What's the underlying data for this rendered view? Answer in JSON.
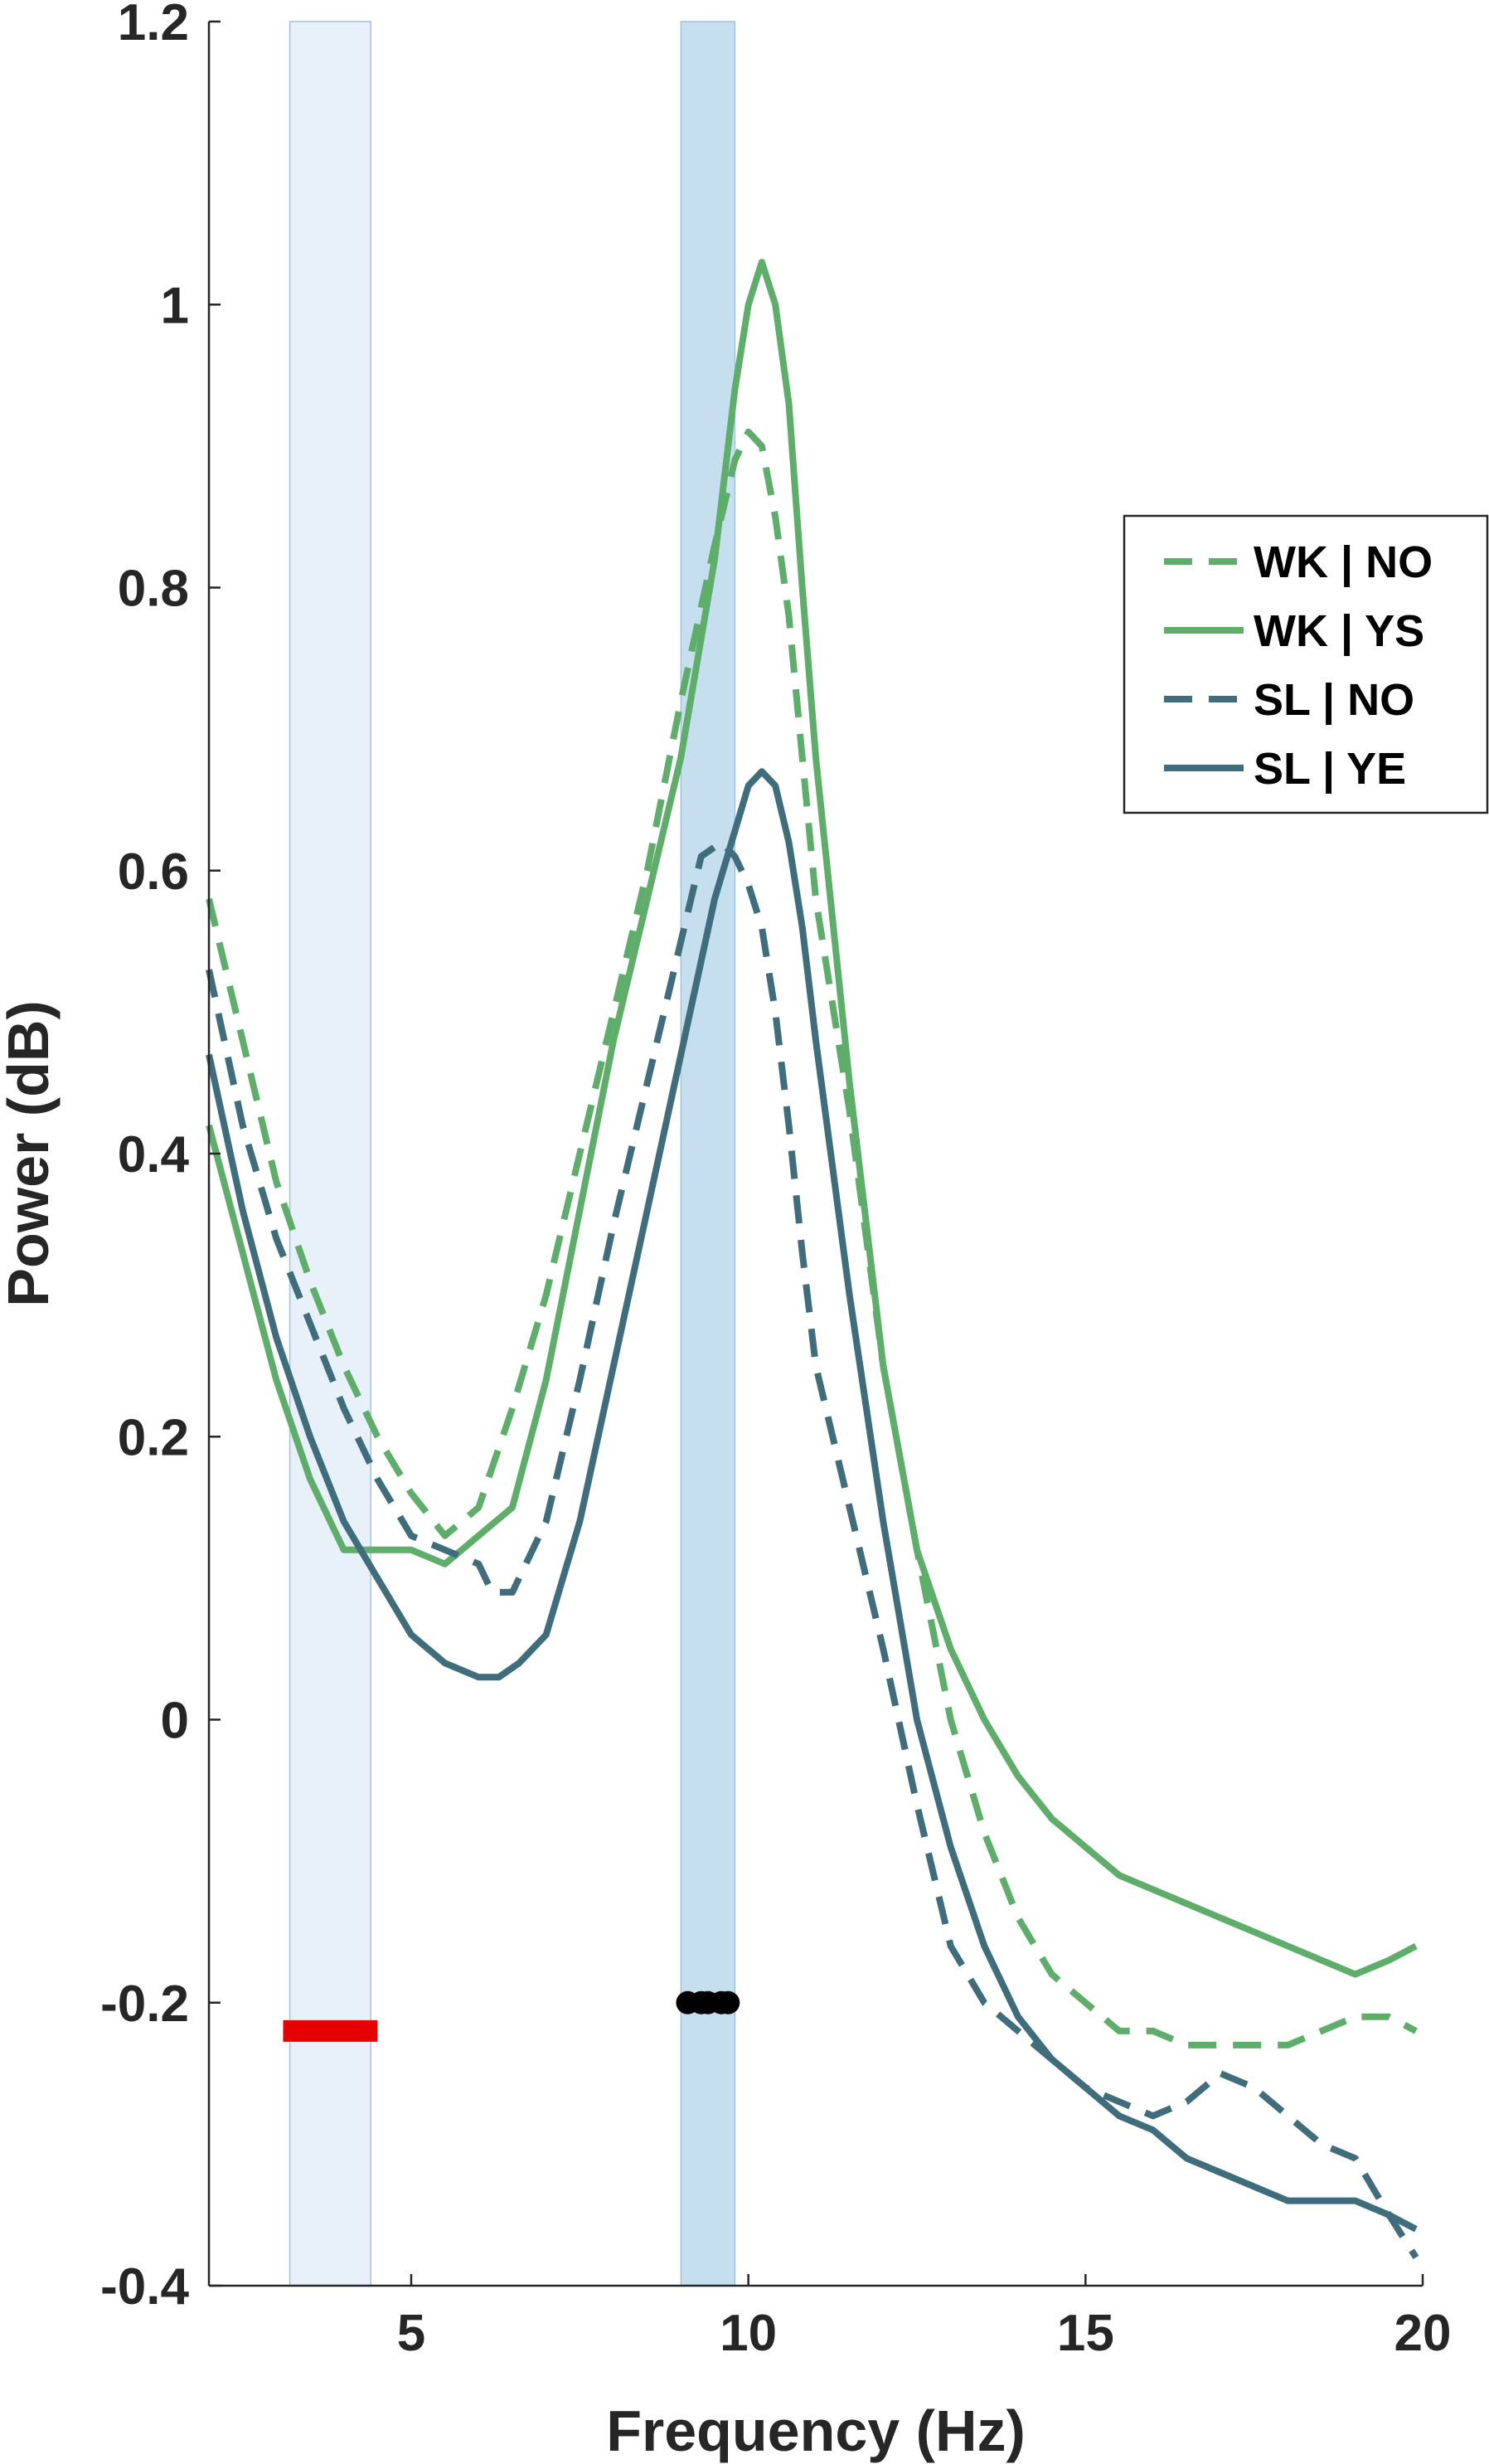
{
  "chart_data": {
    "type": "line",
    "title": "",
    "xlabel": "Frequency (Hz)",
    "ylabel": "Power (dB)",
    "xlim": [
      2,
      20
    ],
    "ylim": [
      -0.4,
      1.2
    ],
    "xticks": [
      5,
      10,
      15,
      20
    ],
    "xtick_labels": [
      "5",
      "10",
      "15",
      "20"
    ],
    "yticks": [
      -0.4,
      -0.2,
      0,
      0.2,
      0.4,
      0.6,
      0.8,
      1,
      1.2
    ],
    "ytick_labels": [
      "-0.4",
      "-0.2",
      "0",
      "0.2",
      "0.4",
      "0.6",
      "0.8",
      "1",
      "1.2"
    ],
    "grid": false,
    "legend_position": "upper-right",
    "shaded_bands": [
      {
        "x": [
          3.2,
          4.4
        ],
        "color": "#e8f0f9"
      },
      {
        "x": [
          9.0,
          9.8
        ],
        "color": "#c5dfee"
      }
    ],
    "markers": {
      "red_bar": {
        "x": [
          3.1,
          4.5
        ],
        "y": -0.22,
        "color": "#e60000"
      },
      "black_dots": {
        "x": [
          9.1,
          9.3,
          9.4,
          9.6,
          9.7
        ],
        "y": -0.2,
        "color": "#000000"
      }
    },
    "series": [
      {
        "name": "WK | NO",
        "color": "#5fad6b",
        "dash": "dashed",
        "x": [
          2.0,
          2.5,
          3.0,
          3.5,
          4.0,
          4.5,
          5.0,
          5.5,
          6.0,
          6.5,
          7.0,
          7.5,
          8.0,
          8.5,
          9.0,
          9.5,
          9.8,
          10.0,
          10.2,
          10.4,
          10.6,
          10.8,
          11.0,
          11.5,
          12.0,
          12.5,
          13.0,
          13.5,
          14.0,
          14.5,
          15.0,
          15.5,
          16.0,
          16.5,
          17.0,
          17.5,
          18.0,
          18.5,
          19.0,
          19.5,
          19.9
        ],
        "y": [
          0.58,
          0.48,
          0.38,
          0.31,
          0.25,
          0.2,
          0.16,
          0.13,
          0.15,
          0.22,
          0.3,
          0.4,
          0.5,
          0.6,
          0.72,
          0.83,
          0.89,
          0.91,
          0.9,
          0.85,
          0.78,
          0.68,
          0.58,
          0.43,
          0.25,
          0.12,
          0.0,
          -0.08,
          -0.14,
          -0.18,
          -0.2,
          -0.22,
          -0.22,
          -0.23,
          -0.23,
          -0.23,
          -0.23,
          -0.22,
          -0.21,
          -0.21,
          -0.22
        ]
      },
      {
        "name": "WK | YS",
        "color": "#5fad6b",
        "dash": "solid",
        "x": [
          2.0,
          2.5,
          3.0,
          3.5,
          4.0,
          4.5,
          5.0,
          5.5,
          6.0,
          6.5,
          7.0,
          7.5,
          8.0,
          8.5,
          9.0,
          9.5,
          9.8,
          10.0,
          10.2,
          10.4,
          10.6,
          10.8,
          11.0,
          11.5,
          12.0,
          12.5,
          13.0,
          13.5,
          14.0,
          14.5,
          15.0,
          15.5,
          16.0,
          16.5,
          17.0,
          17.5,
          18.0,
          18.5,
          19.0,
          19.5,
          19.9
        ],
        "y": [
          0.42,
          0.33,
          0.24,
          0.17,
          0.12,
          0.12,
          0.12,
          0.11,
          0.13,
          0.15,
          0.24,
          0.36,
          0.48,
          0.58,
          0.68,
          0.82,
          0.94,
          1.0,
          1.03,
          1.0,
          0.93,
          0.8,
          0.68,
          0.45,
          0.25,
          0.12,
          0.05,
          0.0,
          -0.04,
          -0.07,
          -0.09,
          -0.11,
          -0.12,
          -0.13,
          -0.14,
          -0.15,
          -0.16,
          -0.17,
          -0.18,
          -0.17,
          -0.16
        ]
      },
      {
        "name": "SL | NO",
        "color": "#3f6d7c",
        "dash": "dashed",
        "x": [
          2.0,
          2.5,
          3.0,
          3.5,
          4.0,
          4.5,
          5.0,
          5.5,
          6.0,
          6.2,
          6.5,
          7.0,
          7.5,
          8.0,
          8.5,
          9.0,
          9.3,
          9.6,
          9.8,
          10.0,
          10.2,
          10.4,
          10.6,
          10.8,
          11.0,
          11.5,
          12.0,
          12.5,
          13.0,
          13.5,
          14.0,
          14.5,
          15.0,
          15.5,
          16.0,
          16.5,
          17.0,
          17.5,
          18.0,
          18.5,
          19.0,
          19.5,
          19.9
        ],
        "y": [
          0.53,
          0.42,
          0.34,
          0.28,
          0.22,
          0.17,
          0.13,
          0.12,
          0.11,
          0.09,
          0.09,
          0.14,
          0.24,
          0.35,
          0.45,
          0.55,
          0.61,
          0.62,
          0.61,
          0.59,
          0.56,
          0.5,
          0.42,
          0.33,
          0.25,
          0.15,
          0.05,
          -0.06,
          -0.16,
          -0.2,
          -0.22,
          -0.24,
          -0.26,
          -0.27,
          -0.28,
          -0.27,
          -0.25,
          -0.26,
          -0.28,
          -0.3,
          -0.31,
          -0.35,
          -0.38
        ]
      },
      {
        "name": "SL | YE",
        "color": "#3f6d7c",
        "dash": "solid",
        "x": [
          2.0,
          2.5,
          3.0,
          3.5,
          4.0,
          4.5,
          5.0,
          5.5,
          6.0,
          6.3,
          6.6,
          7.0,
          7.5,
          8.0,
          8.5,
          9.0,
          9.5,
          10.0,
          10.2,
          10.4,
          10.6,
          10.8,
          11.0,
          11.5,
          12.0,
          12.5,
          13.0,
          13.5,
          14.0,
          14.5,
          15.0,
          15.5,
          16.0,
          16.5,
          17.0,
          17.5,
          18.0,
          18.5,
          19.0,
          19.5,
          19.9
        ],
        "y": [
          0.47,
          0.36,
          0.27,
          0.2,
          0.14,
          0.1,
          0.06,
          0.04,
          0.03,
          0.03,
          0.04,
          0.06,
          0.14,
          0.25,
          0.36,
          0.47,
          0.58,
          0.66,
          0.67,
          0.66,
          0.62,
          0.56,
          0.48,
          0.3,
          0.14,
          0.0,
          -0.09,
          -0.16,
          -0.21,
          -0.24,
          -0.26,
          -0.28,
          -0.29,
          -0.31,
          -0.32,
          -0.33,
          -0.34,
          -0.34,
          -0.34,
          -0.35,
          -0.36
        ]
      }
    ]
  }
}
